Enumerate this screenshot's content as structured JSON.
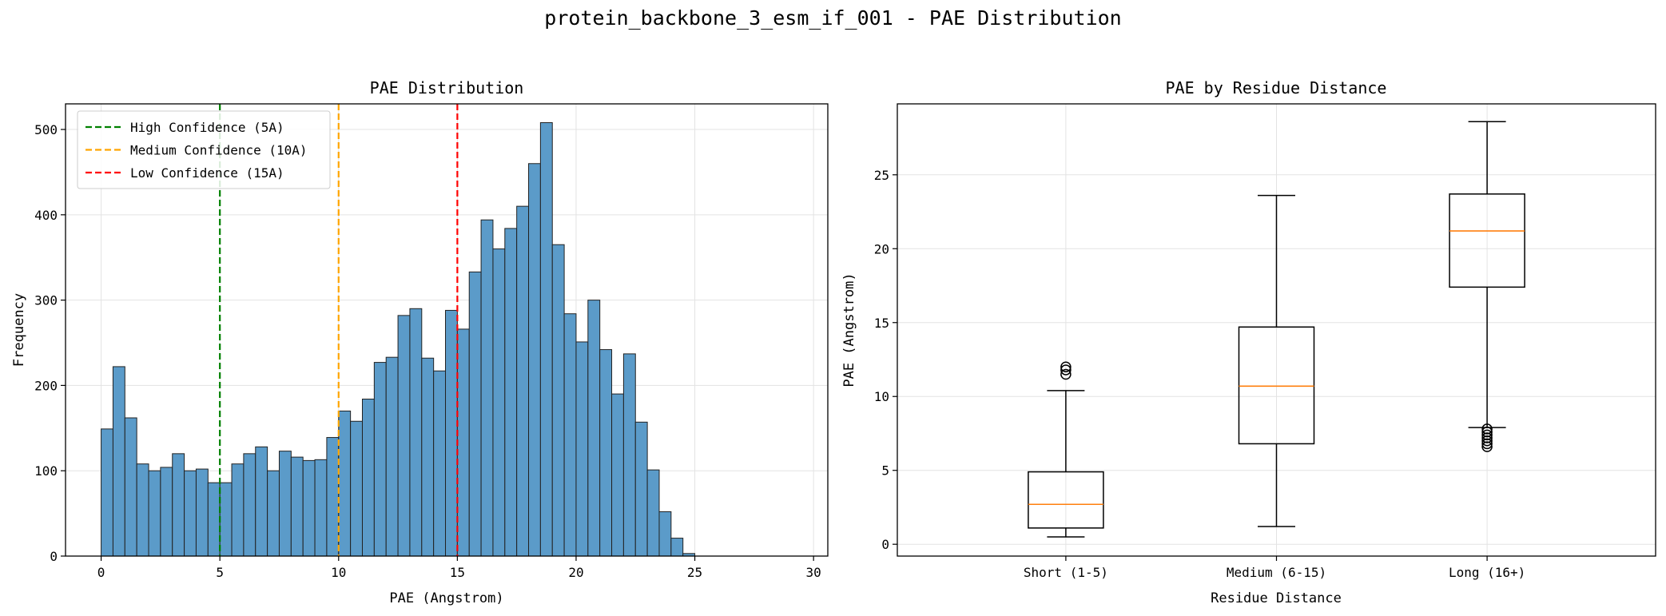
{
  "figure_title": "protein_backbone_3_esm_if_001 - PAE Distribution",
  "chart_data": [
    {
      "type": "bar",
      "subtype": "histogram",
      "title": "PAE Distribution",
      "xlabel": "PAE (Angstrom)",
      "ylabel": "Frequency",
      "xlim": [
        -1.5,
        30.6
      ],
      "ylim": [
        0,
        530
      ],
      "xticks": [
        0,
        5,
        10,
        15,
        20,
        25,
        30
      ],
      "yticks": [
        0,
        100,
        200,
        300,
        400,
        500
      ],
      "grid": true,
      "bar_color": "#5b9bc9",
      "bin_start": 0,
      "bin_width": 0.5,
      "values": [
        149,
        222,
        162,
        108,
        100,
        104,
        120,
        100,
        102,
        86,
        86,
        108,
        120,
        128,
        100,
        123,
        116,
        112,
        113,
        139,
        170,
        158,
        184,
        227,
        233,
        282,
        290,
        232,
        217,
        288,
        266,
        333,
        394,
        360,
        384,
        410,
        460,
        508,
        365,
        284,
        251,
        300,
        242,
        190,
        237,
        157,
        101,
        52,
        21,
        3
      ],
      "reference_lines": [
        {
          "x": 5,
          "label": "High Confidence (5A)",
          "color": "#008000"
        },
        {
          "x": 10,
          "label": "Medium Confidence (10A)",
          "color": "#ffa500"
        },
        {
          "x": 15,
          "label": "Low Confidence (15A)",
          "color": "#ff0000"
        }
      ],
      "legend_position": "upper-left"
    },
    {
      "type": "box",
      "title": "PAE by Residue Distance",
      "xlabel": "Residue Distance",
      "ylabel": "PAE (Angstrom)",
      "ylim": [
        -0.8,
        29.8
      ],
      "yticks": [
        0,
        5,
        10,
        15,
        20,
        25
      ],
      "grid": true,
      "median_color": "#ff7f0e",
      "categories": [
        "Short (1-5)",
        "Medium (6-15)",
        "Long (16+)"
      ],
      "boxes": [
        {
          "whisker_low": 0.5,
          "q1": 1.1,
          "median": 2.7,
          "q3": 4.9,
          "whisker_high": 10.4,
          "outliers": [
            11.5,
            11.8,
            12.0
          ]
        },
        {
          "whisker_low": 1.2,
          "q1": 6.8,
          "median": 10.7,
          "q3": 14.7,
          "whisker_high": 23.6,
          "outliers": []
        },
        {
          "whisker_low": 7.9,
          "q1": 17.4,
          "median": 21.2,
          "q3": 23.7,
          "whisker_high": 28.6,
          "outliers": [
            6.6,
            6.8,
            7.0,
            7.2,
            7.4,
            7.6,
            7.8
          ]
        }
      ]
    }
  ]
}
